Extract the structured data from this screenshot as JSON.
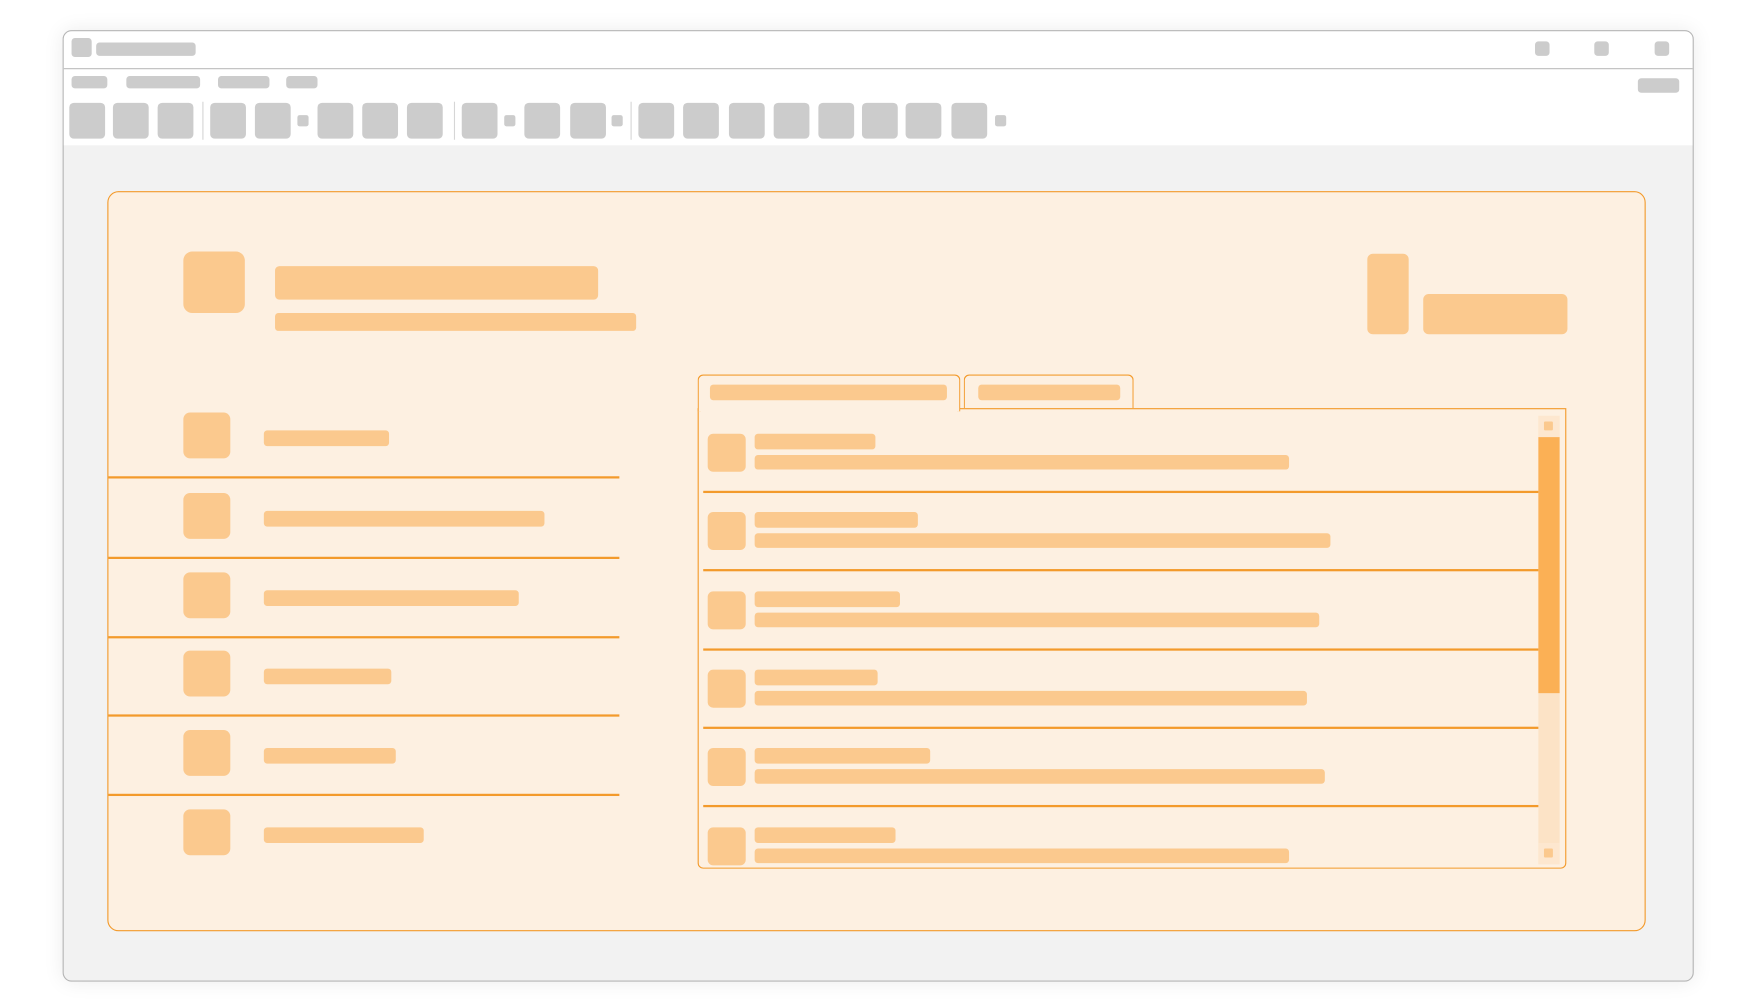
{
  "window": {
    "title": "",
    "controls": [
      "minimize-icon",
      "maximize-icon",
      "close-icon"
    ]
  },
  "menu": {
    "items": [
      "",
      "",
      "",
      ""
    ],
    "right_item": ""
  },
  "toolbar": {
    "button_count": 18
  },
  "dialog": {
    "title": "",
    "subtitle": "",
    "left_list": {
      "items": [
        "",
        "",
        "",
        "",
        "",
        ""
      ]
    },
    "tabs": [
      {
        "label": "",
        "active": true
      },
      {
        "label": "",
        "active": false
      }
    ],
    "list": {
      "items": [
        {
          "title": "",
          "subtitle": ""
        },
        {
          "title": "",
          "subtitle": ""
        },
        {
          "title": "",
          "subtitle": ""
        },
        {
          "title": "",
          "subtitle": ""
        },
        {
          "title": "",
          "subtitle": ""
        },
        {
          "title": "",
          "subtitle": ""
        }
      ],
      "scroll_position_percent": 0
    }
  },
  "colors": {
    "accent": "#f39a2b",
    "placeholder": "#fbc98e",
    "dialog_bg": "#fdf0e1",
    "chrome_placeholder": "#cccccc",
    "scroll_thumb": "#fbb055"
  }
}
